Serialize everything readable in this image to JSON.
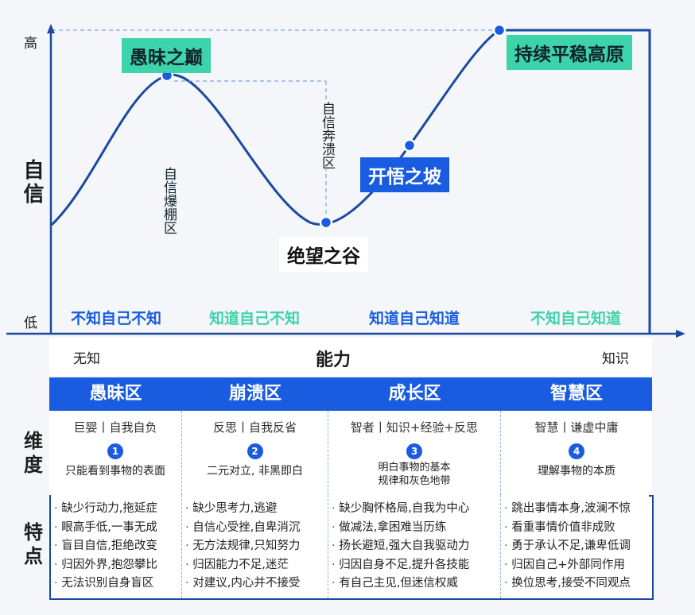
{
  "axis": {
    "y_high": "高",
    "y_low": "低",
    "y_title": "自信",
    "x_left": "无知",
    "x_title": "能力",
    "x_right": "知识"
  },
  "peaks": {
    "stupidity": "愚昧之巅",
    "despair": "绝望之谷",
    "enlighten": "开悟之坡",
    "plateau": "持续平稳高原"
  },
  "zones_vertical": {
    "burst": "自信爆棚区",
    "collapse": "自信奔溃区"
  },
  "bands": [
    "不知自己不知",
    "知道自己不知",
    "知道自己知道",
    "不知自己知道"
  ],
  "zones": [
    {
      "name": "愚昧区",
      "dim": "巨婴丨自我自负",
      "num": "1",
      "desc": "只能看到事物的表面",
      "features": [
        "缺少行动力,拖延症",
        "眼高手低,一事无成",
        "盲目自信,拒绝改变",
        "归因外界,抱怨攀比",
        "无法识别自身盲区"
      ]
    },
    {
      "name": "崩溃区",
      "dim": "反思丨自我反省",
      "num": "2",
      "desc": "二元对立, 非黑即白",
      "features": [
        "缺少思考力,逃避",
        "自信心受挫,自卑消沉",
        "无方法规律,只知努力",
        "归因能力不足,迷茫",
        "对建议,内心并不接受"
      ]
    },
    {
      "name": "成长区",
      "dim": "智者丨知识+经验+反思",
      "num": "3",
      "desc": "明白事物的基本\n规律和灰色地带",
      "features": [
        "缺少胸怀格局,自我为中心",
        "做减法,拿困难当历练",
        "扬长避短,强大自我驱动力",
        "归因自身不足,提升各技能",
        "有自己主见,但迷信权威"
      ]
    },
    {
      "name": "智慧区",
      "dim": "智慧丨谦虚中庸",
      "num": "4",
      "desc": "理解事物的本质",
      "features": [
        "跳出事情本身,波澜不惊",
        "看重事情价值非成败",
        "勇于承认不足,谦卑低调",
        "归因自己+外部同作用",
        "换位思考,接受不同观点"
      ]
    }
  ],
  "side": {
    "dimension": "维度",
    "features": "特点"
  },
  "colors": {
    "green": "#3dd3ab",
    "blue": "#1a5ce0",
    "dark": "#1a4aa0"
  }
}
